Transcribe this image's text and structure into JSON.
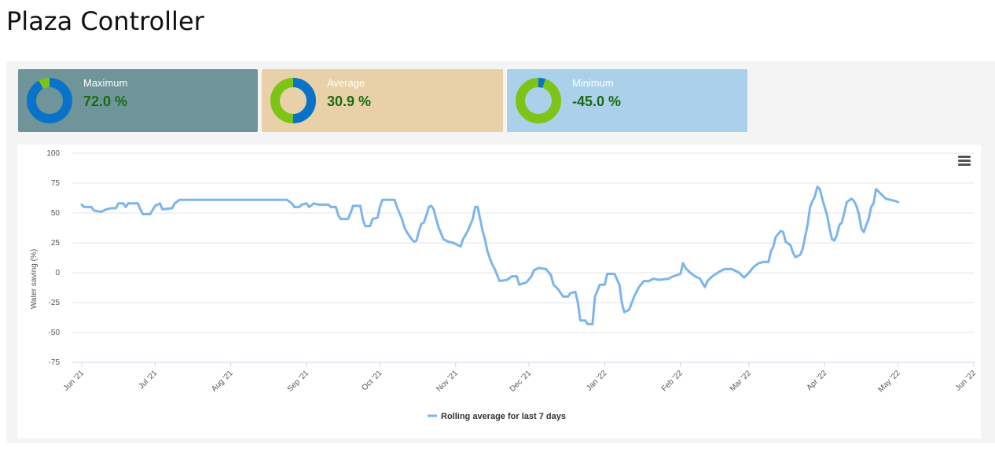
{
  "page": {
    "title": "Plaza Controller"
  },
  "stats": [
    {
      "label": "Maximum",
      "value": "72.0 %",
      "bg": "#6f959b",
      "ring_colors": [
        "#0a73c9",
        "#7cc516"
      ],
      "share": 0.92
    },
    {
      "label": "Average",
      "value": "30.9 %",
      "bg": "#e8d1a8",
      "ring_colors": [
        "#0a73c9",
        "#7cc516"
      ],
      "share": 0.5
    },
    {
      "label": "Minimum",
      "value": "-45.0 %",
      "bg": "#abd0ea",
      "ring_colors": [
        "#0a73c9",
        "#7cc516"
      ],
      "share": 0.05
    }
  ],
  "chart_menu": {
    "icon": "hamburger-menu-icon"
  },
  "chart_data": {
    "type": "line",
    "ylabel": "Water saving (%)",
    "xlabel": "",
    "ylim": [
      -75,
      100
    ],
    "yticks": [
      100,
      75,
      50,
      25,
      0,
      -25,
      -50,
      -75
    ],
    "x_start": "2021-06-01",
    "xticks": [
      {
        "date": "2021-06-01",
        "label": "Jun '21"
      },
      {
        "date": "2021-07-01",
        "label": "Jul '21"
      },
      {
        "date": "2021-08-01",
        "label": "Aug '21"
      },
      {
        "date": "2021-09-01",
        "label": "Sep '21"
      },
      {
        "date": "2021-10-01",
        "label": "Oct '21"
      },
      {
        "date": "2021-11-01",
        "label": "Nov '21"
      },
      {
        "date": "2021-12-01",
        "label": "Dec '21"
      },
      {
        "date": "2022-01-01",
        "label": "Jan '22"
      },
      {
        "date": "2022-02-01",
        "label": "Feb '22"
      },
      {
        "date": "2022-03-01",
        "label": "Mar '22"
      },
      {
        "date": "2022-04-01",
        "label": "Apr '22"
      },
      {
        "date": "2022-05-01",
        "label": "May '22"
      },
      {
        "date": "2022-06-01",
        "label": "Jun '22"
      }
    ],
    "grid": true,
    "legend_position": "bottom-center",
    "series": [
      {
        "name": "Rolling average for last 7 days",
        "color": "#7cb5ec",
        "points": [
          [
            "2021-06-01",
            57
          ],
          [
            "2021-06-02",
            55
          ],
          [
            "2021-06-05",
            55
          ],
          [
            "2021-06-06",
            52
          ],
          [
            "2021-06-09",
            51
          ],
          [
            "2021-06-11",
            53
          ],
          [
            "2021-06-13",
            54
          ],
          [
            "2021-06-15",
            54
          ],
          [
            "2021-06-16",
            58
          ],
          [
            "2021-06-18",
            58
          ],
          [
            "2021-06-19",
            55
          ],
          [
            "2021-06-20",
            58
          ],
          [
            "2021-06-24",
            58
          ],
          [
            "2021-06-25",
            53
          ],
          [
            "2021-06-26",
            49
          ],
          [
            "2021-06-29",
            49
          ],
          [
            "2021-07-01",
            56
          ],
          [
            "2021-07:03",
            58
          ],
          [
            "2021-07-04",
            53
          ],
          [
            "2021-07-08",
            54
          ],
          [
            "2021-07-09",
            58
          ],
          [
            "2021-07-11",
            61
          ],
          [
            "2021-07-25",
            61
          ],
          [
            "2021-08-14",
            61
          ],
          [
            "2021-08-24",
            61
          ],
          [
            "2021-08-26",
            58
          ],
          [
            "2021-08-27",
            55
          ],
          [
            "2021-08-29",
            55
          ],
          [
            "2021-08-30",
            57
          ],
          [
            "2021-09-01",
            58
          ],
          [
            "2021-09-02",
            55
          ],
          [
            "2021-09-04",
            58
          ],
          [
            "2021-09-06",
            57
          ],
          [
            "2021-09-10",
            57
          ],
          [
            "2021-09-11",
            55
          ],
          [
            "2021-09-13",
            55
          ],
          [
            "2021-09-14",
            48
          ],
          [
            "2021-09-15",
            45
          ],
          [
            "2021-09-18",
            45
          ],
          [
            "2021-09-19",
            50
          ],
          [
            "2021-09-20",
            56
          ],
          [
            "2021-09-23",
            56
          ],
          [
            "2021-09-24",
            45
          ],
          [
            "2021-09-25",
            39
          ],
          [
            "2021-09-27",
            39
          ],
          [
            "2021-09-28",
            45
          ],
          [
            "2021-09-30",
            46
          ],
          [
            "2021-10-01",
            55
          ],
          [
            "2021-10-02",
            61
          ],
          [
            "2021-10-07",
            61
          ],
          [
            "2021-10-08",
            55
          ],
          [
            "2021-10-10",
            45
          ],
          [
            "2021-10-11",
            38
          ],
          [
            "2021-10-12",
            34
          ],
          [
            "2021-10-13",
            31
          ],
          [
            "2021-10-14",
            28
          ],
          [
            "2021-10-15",
            26
          ],
          [
            "2021-10-16",
            27
          ],
          [
            "2021-10-17",
            35
          ],
          [
            "2021-10-18",
            41
          ],
          [
            "2021-10-19",
            42
          ],
          [
            "2021-10-20",
            48
          ],
          [
            "2021-10-21",
            55
          ],
          [
            "2021-10-22",
            56
          ],
          [
            "2021-10-23",
            53
          ],
          [
            "2021-10-24",
            45
          ],
          [
            "2021-10-25",
            38
          ],
          [
            "2021-10-26",
            33
          ],
          [
            "2021-10-27",
            28
          ],
          [
            "2021-10-29",
            26
          ],
          [
            "2021-10-31",
            25
          ],
          [
            "2021-11-02",
            23
          ],
          [
            "2021-11-03",
            22
          ],
          [
            "2021-11-04",
            28
          ],
          [
            "2021-11-06",
            35
          ],
          [
            "2021-11-08",
            45
          ],
          [
            "2021-11-09",
            55
          ],
          [
            "2021-11-10",
            55
          ],
          [
            "2021-11-11",
            45
          ],
          [
            "2021-11-12",
            35
          ],
          [
            "2021-11-13",
            28
          ],
          [
            "2021-11-14",
            18
          ],
          [
            "2021-11-15",
            12
          ],
          [
            "2021-11-16",
            7
          ],
          [
            "2021-11-17",
            3
          ],
          [
            "2021-11-18",
            -2
          ],
          [
            "2021-11-19",
            -7
          ],
          [
            "2021-11-22",
            -6
          ],
          [
            "2021-11-24",
            -3
          ],
          [
            "2021-11-26",
            -3
          ],
          [
            "2021-11-27",
            -10
          ],
          [
            "2021-11-30",
            -8
          ],
          [
            "2021-12-02",
            -3
          ],
          [
            "2021-12-03",
            2
          ],
          [
            "2021-12-05",
            4
          ],
          [
            "2021-12-08",
            3
          ],
          [
            "2021-12-10",
            -2
          ],
          [
            "2021-12-11",
            -10
          ],
          [
            "2021-12-13",
            -14
          ],
          [
            "2021-12-15",
            -20
          ],
          [
            "2021-12-17",
            -20
          ],
          [
            "2021-12-18",
            -17
          ],
          [
            "2021-12-20",
            -16
          ],
          [
            "2021-12-21",
            -25
          ],
          [
            "2021-12-22",
            -40
          ],
          [
            "2021-12-24",
            -40
          ],
          [
            "2021-12-25",
            -43
          ],
          [
            "2021-12-27",
            -43
          ],
          [
            "2021-12-28",
            -20
          ],
          [
            "2021-12-30",
            -10
          ],
          [
            "2022-01-01",
            -10
          ],
          [
            "2022-01-02",
            -1
          ],
          [
            "2022-01-05",
            -1
          ],
          [
            "2022-01-07",
            -10
          ],
          [
            "2022-01-08",
            -25
          ],
          [
            "2022-01-09",
            -33
          ],
          [
            "2022-01-11",
            -31
          ],
          [
            "2022-01-13",
            -20
          ],
          [
            "2022-01-15",
            -12
          ],
          [
            "2022-01-17",
            -7
          ],
          [
            "2022-01-19",
            -7
          ],
          [
            "2022-01-21",
            -5
          ],
          [
            "2022-01-23",
            -6
          ],
          [
            "2022-01-27",
            -5
          ],
          [
            "2022-01-29",
            -3
          ],
          [
            "2022-02-01",
            -1
          ],
          [
            "2022-02-02",
            8
          ],
          [
            "2022-02-03",
            4
          ],
          [
            "2022-02-05",
            0
          ],
          [
            "2022-02-07",
            -3
          ],
          [
            "2022-02-09",
            -5
          ],
          [
            "2022-02-11",
            -12
          ],
          [
            "2022-02-12",
            -7
          ],
          [
            "2022-02-14",
            -3
          ],
          [
            "2022-02-17",
            1
          ],
          [
            "2022-02-19",
            3
          ],
          [
            "2022-02-22",
            3
          ],
          [
            "2022-02-25",
            0
          ],
          [
            "2022-02-27",
            -4
          ],
          [
            "2022-03-01",
            0
          ],
          [
            "2022-03-03",
            5
          ],
          [
            "2022-03-05",
            8
          ],
          [
            "2022-03-07",
            9
          ],
          [
            "2022-03-09",
            9
          ],
          [
            "2022-03-10",
            18
          ],
          [
            "2022-03-11",
            22
          ],
          [
            "2022-03-12",
            30
          ],
          [
            "2022-03-14",
            35
          ],
          [
            "2022-03-15",
            34
          ],
          [
            "2022-03-16",
            26
          ],
          [
            "2022-03-18",
            23
          ],
          [
            "2022-03-19",
            17
          ],
          [
            "2022-03-20",
            13
          ],
          [
            "2022-03-22",
            15
          ],
          [
            "2022-03-23",
            20
          ],
          [
            "2022-03-24",
            30
          ],
          [
            "2022-03-25",
            40
          ],
          [
            "2022-03-26",
            55
          ],
          [
            "2022-03-27",
            60
          ],
          [
            "2022-03-28",
            64
          ],
          [
            "2022-03-29",
            72
          ],
          [
            "2022-03-30",
            70
          ],
          [
            "2022-03-31",
            62
          ],
          [
            "2022-04-01",
            55
          ],
          [
            "2022-04-02",
            48
          ],
          [
            "2022-04-03",
            37
          ],
          [
            "2022-04-04",
            28
          ],
          [
            "2022-04-05",
            27
          ],
          [
            "2022-04-06",
            32
          ],
          [
            "2022-04-07",
            40
          ],
          [
            "2022-04-08",
            42
          ],
          [
            "2022-04-09",
            50
          ],
          [
            "2022-04-10",
            59
          ],
          [
            "2022-04-12",
            62
          ],
          [
            "2022-04-13",
            60
          ],
          [
            "2022-04-14",
            56
          ],
          [
            "2022-04-15",
            49
          ],
          [
            "2022-04-16",
            37
          ],
          [
            "2022-04-17",
            34
          ],
          [
            "2022-04-18",
            40
          ],
          [
            "2022-04-19",
            45
          ],
          [
            "2022-04-20",
            55
          ],
          [
            "2022-04-21",
            58
          ],
          [
            "2022-04-22",
            70
          ],
          [
            "2022-04-23",
            68
          ],
          [
            "2022-04-24",
            66
          ],
          [
            "2022-04-26",
            62
          ],
          [
            "2022-04-28",
            61
          ],
          [
            "2022-04-30",
            60
          ],
          [
            "2022-05-01",
            59
          ]
        ]
      }
    ]
  }
}
